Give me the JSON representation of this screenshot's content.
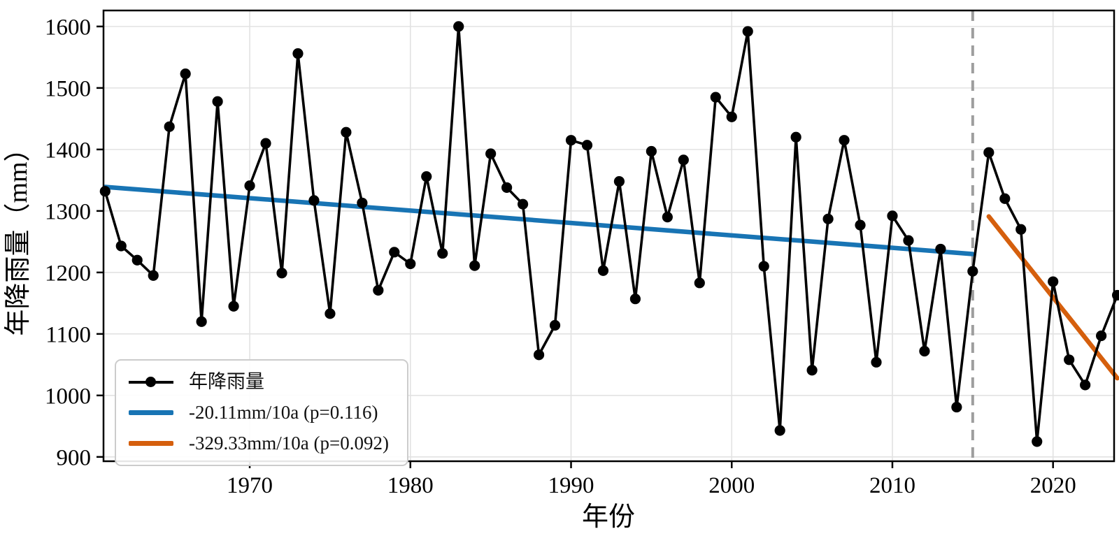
{
  "chart_data": {
    "type": "line",
    "title": "",
    "xlabel": "年份",
    "ylabel": "年降雨量（mm）",
    "xlim": [
      1960.9,
      2023.8
    ],
    "ylim": [
      893,
      1626
    ],
    "xticks": [
      1970,
      1980,
      1990,
      2000,
      2010,
      2020
    ],
    "yticks": [
      900,
      1000,
      1100,
      1200,
      1300,
      1400,
      1500,
      1600
    ],
    "grid": true,
    "legend_position": "lower left",
    "series": [
      {
        "name": "年降雨量",
        "color": "#000000",
        "marker": "circle",
        "x": [
          1961,
          1962,
          1963,
          1964,
          1965,
          1966,
          1967,
          1968,
          1969,
          1970,
          1971,
          1972,
          1973,
          1974,
          1975,
          1976,
          1977,
          1978,
          1979,
          1980,
          1981,
          1982,
          1983,
          1984,
          1985,
          1986,
          1987,
          1988,
          1989,
          1990,
          1991,
          1992,
          1993,
          1994,
          1995,
          1996,
          1997,
          1998,
          1999,
          2000,
          2001,
          2002,
          2003,
          2004,
          2005,
          2006,
          2007,
          2008,
          2009,
          2010,
          2011,
          2012,
          2013,
          2014,
          2015,
          2016,
          2017,
          2018,
          2019,
          2020,
          2021,
          2022,
          2023,
          2024
        ],
        "values": [
          1332,
          1243,
          1220,
          1195,
          1437,
          1523,
          1120,
          1478,
          1145,
          1341,
          1410,
          1199,
          1556,
          1317,
          1133,
          1428,
          1313,
          1171,
          1233,
          1214,
          1356,
          1231,
          1600,
          1211,
          1393,
          1338,
          1311,
          1066,
          1114,
          1415,
          1407,
          1203,
          1348,
          1157,
          1397,
          1290,
          1383,
          1183,
          1485,
          1453,
          1592,
          1210,
          943,
          1420,
          1041,
          1287,
          1415,
          1277,
          1054,
          1292,
          1252,
          1072,
          1238,
          981,
          1202,
          1395,
          1320,
          1270,
          925,
          1185,
          1058,
          1017,
          1097,
          1163
        ]
      }
    ],
    "trends": [
      {
        "name": "-20.11mm/10a (p=0.116)",
        "slope_mm_per_10a": -20.11,
        "p_value": 0.116,
        "color": "#1874b4",
        "x": [
          1961,
          2015
        ],
        "y": [
          1339,
          1230
        ]
      },
      {
        "name": "-329.33mm/10a (p=0.092)",
        "slope_mm_per_10a": -329.33,
        "p_value": 0.092,
        "color": "#d55f0d",
        "x": [
          2016,
          2024
        ],
        "y": [
          1291,
          1028
        ]
      }
    ],
    "changepoint_line": {
      "x": 2015,
      "style": "dashed",
      "color": "#9e9e9e"
    },
    "grid_color": "#e2e2e2",
    "spine_color": "#000000"
  },
  "legend": {
    "items": [
      {
        "label": "年降雨量",
        "swatch": "black-line-with-dot"
      },
      {
        "label": "-20.11mm/10a (p=0.116)",
        "swatch": "blue-line"
      },
      {
        "label": "-329.33mm/10a (p=0.092)",
        "swatch": "orange-line"
      }
    ]
  }
}
